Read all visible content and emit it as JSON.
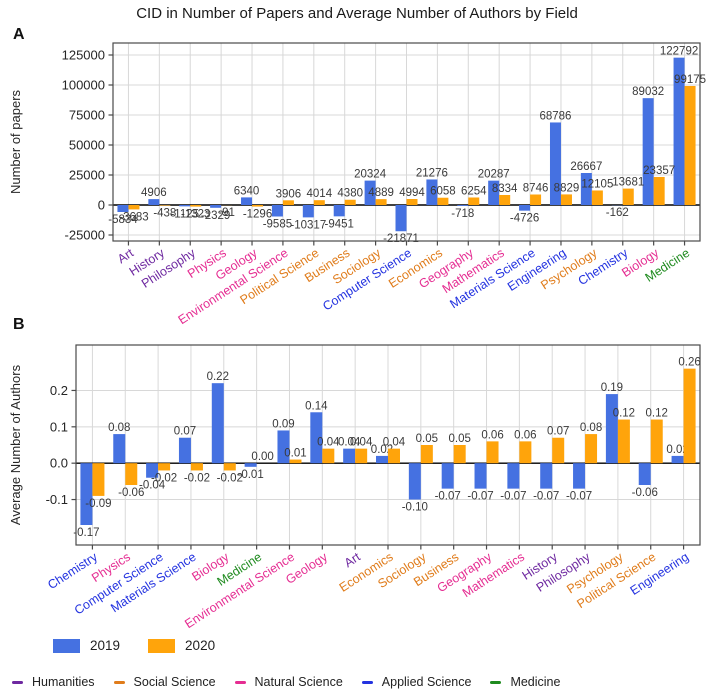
{
  "title": "CID in Number of Papers and Average Number of Authors by Field",
  "panels": {
    "a": {
      "label": "A"
    },
    "b": {
      "label": "B"
    }
  },
  "legend": {
    "years": [
      {
        "label": "2019",
        "color": "#4571e1"
      },
      {
        "label": "2020",
        "color": "#ffa40b"
      }
    ],
    "categories": [
      {
        "key": "humanities",
        "label": "Humanities",
        "color": "#6e28a0"
      },
      {
        "key": "social",
        "label": "Social Science",
        "color": "#e07c1b"
      },
      {
        "key": "natural",
        "label": "Natural Science",
        "color": "#e52d92"
      },
      {
        "key": "applied",
        "label": "Applied Science",
        "color": "#2433e0"
      },
      {
        "key": "medicine",
        "label": "Medicine",
        "color": "#1f8b1f"
      }
    ]
  },
  "chart_data": [
    {
      "type": "bar",
      "panel": "A",
      "ylabel": "Number of papers",
      "ytick_values": [
        125000,
        100000,
        75000,
        50000,
        25000,
        0,
        -25000
      ],
      "ytick_labels": [
        "125000",
        "100000",
        "75000",
        "50000",
        "25000",
        "0",
        "-25000"
      ],
      "ylim": [
        -30000,
        135000
      ],
      "label_format": "int",
      "grid": true,
      "categories": [
        "Art",
        "History",
        "Philosophy",
        "Physics",
        "Geology",
        "Environmental Science",
        "Political Science",
        "Business",
        "Sociology",
        "Computer Science",
        "Economics",
        "Geography",
        "Mathematics",
        "Materials Science",
        "Engineering",
        "Psychology",
        "Chemistry",
        "Biology",
        "Medicine"
      ],
      "category_groups": [
        "humanities",
        "humanities",
        "humanities",
        "natural",
        "natural",
        "natural",
        "social",
        "social",
        "social",
        "applied",
        "social",
        "natural",
        "natural",
        "applied",
        "applied",
        "social",
        "applied",
        "natural",
        "medicine"
      ],
      "series": [
        {
          "name": "2019",
          "color": "#4571e1",
          "values": [
            -5834,
            4906,
            -1125,
            -2329,
            6340,
            -9585,
            -10317,
            -9451,
            20324,
            -21871,
            21276,
            -718,
            20287,
            -4726,
            68786,
            26667,
            -162,
            89032,
            122792
          ]
        },
        {
          "name": "2020",
          "color": "#ffa40b",
          "values": [
            -3683,
            -438,
            -1323,
            -91,
            -1296,
            3906,
            4014,
            4380,
            4889,
            4994,
            6058,
            6254,
            8334,
            8746,
            8829,
            12105,
            13681,
            23357,
            99175
          ]
        }
      ]
    },
    {
      "type": "bar",
      "panel": "B",
      "ylabel": "Average Number of Authors",
      "ytick_values": [
        0.2,
        0.1,
        0.0,
        -0.1
      ],
      "ytick_labels": [
        "0.2",
        "0.1",
        "0.0",
        "-0.1"
      ],
      "ylim": [
        -0.225,
        0.325
      ],
      "label_format": "2dp",
      "grid": true,
      "categories": [
        "Chemistry",
        "Physics",
        "Computer Science",
        "Materials Science",
        "Biology",
        "Medicine",
        "Environmental Science",
        "Geology",
        "Art",
        "Economics",
        "Sociology",
        "Business",
        "Geography",
        "Mathematics",
        "History",
        "Philosophy",
        "Psychology",
        "Political Science",
        "Engineering"
      ],
      "category_groups": [
        "applied",
        "natural",
        "applied",
        "applied",
        "natural",
        "medicine",
        "natural",
        "natural",
        "humanities",
        "social",
        "social",
        "social",
        "natural",
        "natural",
        "humanities",
        "humanities",
        "social",
        "social",
        "applied"
      ],
      "series": [
        {
          "name": "2019",
          "color": "#4571e1",
          "values": [
            -0.17,
            0.08,
            -0.04,
            0.07,
            0.22,
            -0.01,
            0.09,
            0.14,
            0.04,
            0.02,
            -0.1,
            -0.07,
            -0.07,
            -0.07,
            -0.07,
            -0.07,
            0.19,
            -0.06,
            0.02
          ]
        },
        {
          "name": "2020",
          "color": "#ffa40b",
          "values": [
            -0.09,
            -0.06,
            -0.02,
            -0.02,
            -0.02,
            0.0,
            0.01,
            0.04,
            0.04,
            0.04,
            0.05,
            0.05,
            0.06,
            0.06,
            0.07,
            0.08,
            0.12,
            0.12,
            0.26
          ]
        }
      ]
    }
  ]
}
